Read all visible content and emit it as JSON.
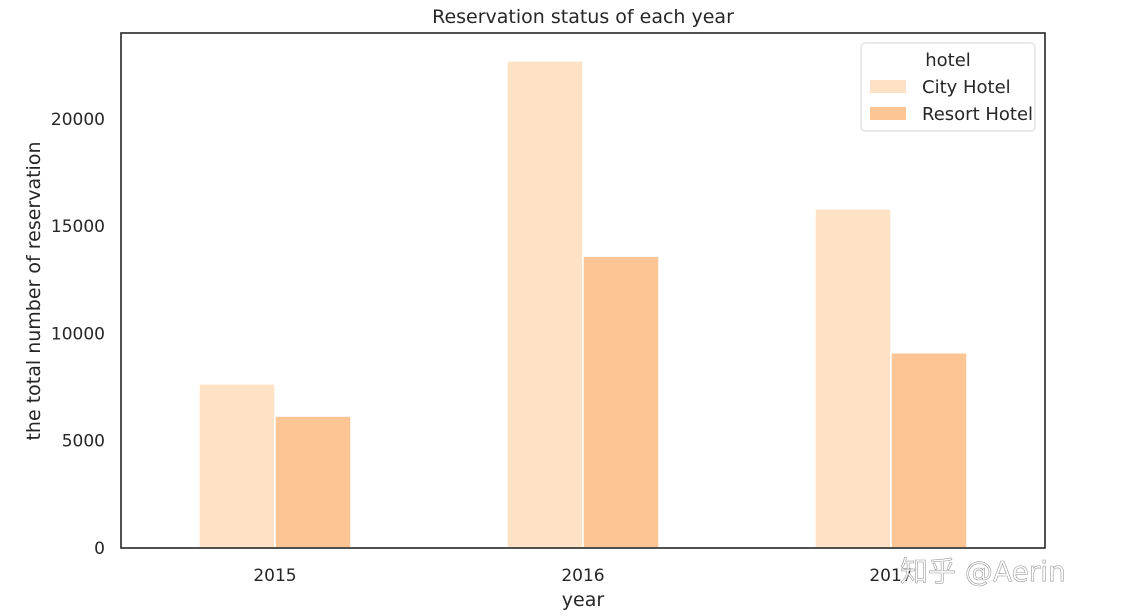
{
  "chart_data": {
    "type": "bar",
    "title": "Reservation status of each year",
    "xlabel": "year",
    "ylabel": "the total number of reservation",
    "categories": [
      "2015",
      "2016",
      "2017"
    ],
    "series": [
      {
        "name": "City Hotel",
        "values": [
          7650,
          22700,
          15800
        ],
        "color": "#fde2c6"
      },
      {
        "name": "Resort Hotel",
        "values": [
          6150,
          13600,
          9100
        ],
        "color": "#fdc593"
      }
    ],
    "ylim": [
      0,
      24000
    ],
    "yticks": [
      0,
      5000,
      10000,
      15000,
      20000
    ],
    "grid": false,
    "legend": {
      "title": "hotel",
      "position": "top-right"
    }
  },
  "watermark": "知乎 @Aerin"
}
